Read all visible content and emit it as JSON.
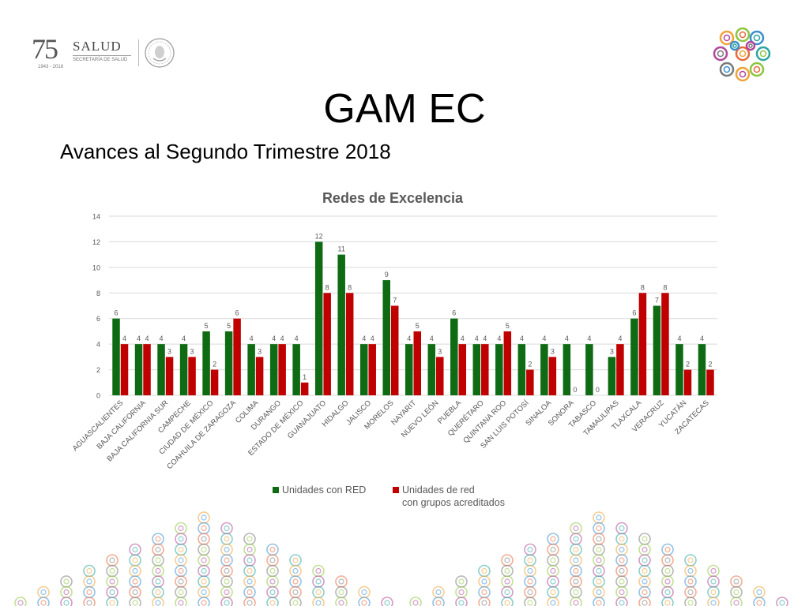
{
  "header": {
    "logo_75_number": "75",
    "logo_75_sub": "AÑOS",
    "logo_75_years": "1943 - 2018",
    "logo_salud_name": "SALUD",
    "logo_salud_sub": "SECRETARÍA DE SALUD"
  },
  "slide": {
    "title": "GAM EC",
    "subtitle": "Avances al Segundo Trimestre 2018"
  },
  "colors": {
    "series_1": "#0e6b13",
    "series_2": "#c00000",
    "grid": "#d9d9d9",
    "axis_text": "#595959",
    "logo_palette": [
      "#f0a23b",
      "#8cc63f",
      "#3a8fd1",
      "#b0479a",
      "#e86a3c",
      "#2aa6a0",
      "#7a7a7a"
    ]
  },
  "chart_data": {
    "type": "bar",
    "title": "Redes de Excelencia",
    "xlabel": "",
    "ylabel": "",
    "ylim": [
      0,
      14
    ],
    "yticks": [
      0,
      2,
      4,
      6,
      8,
      10,
      12,
      14
    ],
    "grid": true,
    "legend_position": "bottom",
    "categories": [
      "AGUASCALIENTES",
      "BAJA CALIFORNIA",
      "BAJA CALIFORNIA SUR",
      "CAMPECHE",
      "CIUDAD DE MÉXICO",
      "COAHUILA DE ZARAGOZA",
      "COLIMA",
      "DURANGO",
      "ESTADO DE MÉXICO",
      "GUANAJUATO",
      "HIDALGO",
      "JALISCO",
      "MORELOS",
      "NAYARIT",
      "NUEVO LEÓN",
      "PUEBLA",
      "QUERÉTARO",
      "QUINTANA ROO",
      "SAN LUIS POTOSÍ",
      "SINALOA",
      "SONORA",
      "TABASCO",
      "TAMAULIPAS",
      "TLAXCALA",
      "VERACRUZ",
      "YUCATÁN",
      "ZACATECAS"
    ],
    "series": [
      {
        "name": "Unidades con RED",
        "color": "#0e6b13",
        "values": [
          6,
          4,
          4,
          4,
          5,
          5,
          4,
          4,
          4,
          12,
          11,
          4,
          9,
          4,
          4,
          6,
          4,
          4,
          4,
          4,
          4,
          4,
          3,
          6,
          7,
          4,
          4
        ]
      },
      {
        "name": "Unidades de red con grupos acreditados",
        "legend_lines": [
          "Unidades de red",
          "con grupos acreditados"
        ],
        "color": "#c00000",
        "values": [
          4,
          4,
          3,
          3,
          2,
          6,
          3,
          4,
          1,
          8,
          8,
          4,
          7,
          5,
          3,
          4,
          4,
          5,
          2,
          3,
          0,
          0,
          4,
          8,
          8,
          2,
          2
        ]
      }
    ]
  }
}
